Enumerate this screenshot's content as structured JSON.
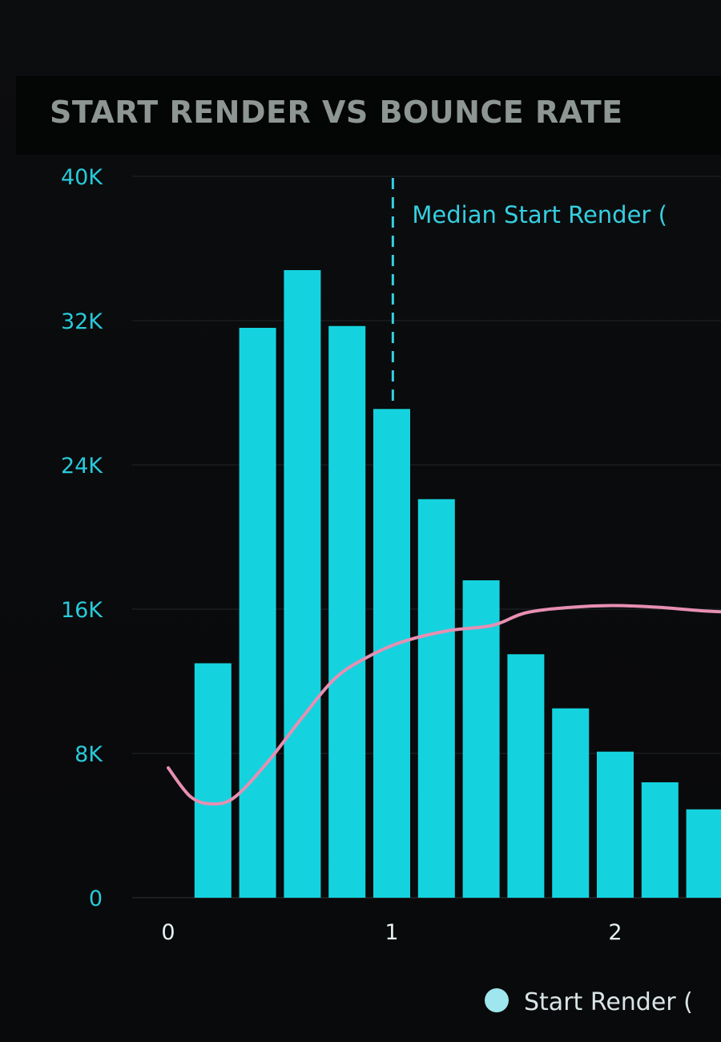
{
  "chart_data": {
    "type": "bar",
    "title": "START RENDER VS BOUNCE RATE",
    "ylim": [
      0,
      40000
    ],
    "y_ticks": [
      "0",
      "8K",
      "16K",
      "24K",
      "32K",
      "40K"
    ],
    "y_tick_values": [
      0,
      8000,
      16000,
      24000,
      32000,
      40000
    ],
    "x_ticks": [
      "0",
      "1",
      "2"
    ],
    "x_tick_values": [
      0,
      1,
      2
    ],
    "grid": true,
    "annotation": {
      "label": "Median Start Render (",
      "x": 1.03
    },
    "series": [
      {
        "name": "Start Render (",
        "type": "bar",
        "color": "#14d3df",
        "x": [
          0.2,
          0.4,
          0.6,
          0.8,
          1.0,
          1.2,
          1.4,
          1.6,
          1.8,
          2.0,
          2.2,
          2.4
        ],
        "values": [
          13000,
          31600,
          34800,
          31700,
          27100,
          22100,
          17600,
          13500,
          10500,
          8100,
          6400,
          4900
        ]
      },
      {
        "type": "line",
        "color": "#e78fb2",
        "x": [
          0.0,
          0.1,
          0.2,
          0.3,
          0.45,
          0.6,
          0.75,
          0.9,
          1.05,
          1.25,
          1.45,
          1.6,
          1.8,
          2.0,
          2.2,
          2.4,
          2.6
        ],
        "values": [
          7200,
          5600,
          5200,
          5600,
          7600,
          10000,
          12200,
          13400,
          14200,
          14800,
          15100,
          15800,
          16100,
          16200,
          16100,
          15900,
          15800
        ]
      }
    ],
    "legend": {
      "position": "bottom",
      "items": [
        "Start Render ("
      ]
    }
  }
}
